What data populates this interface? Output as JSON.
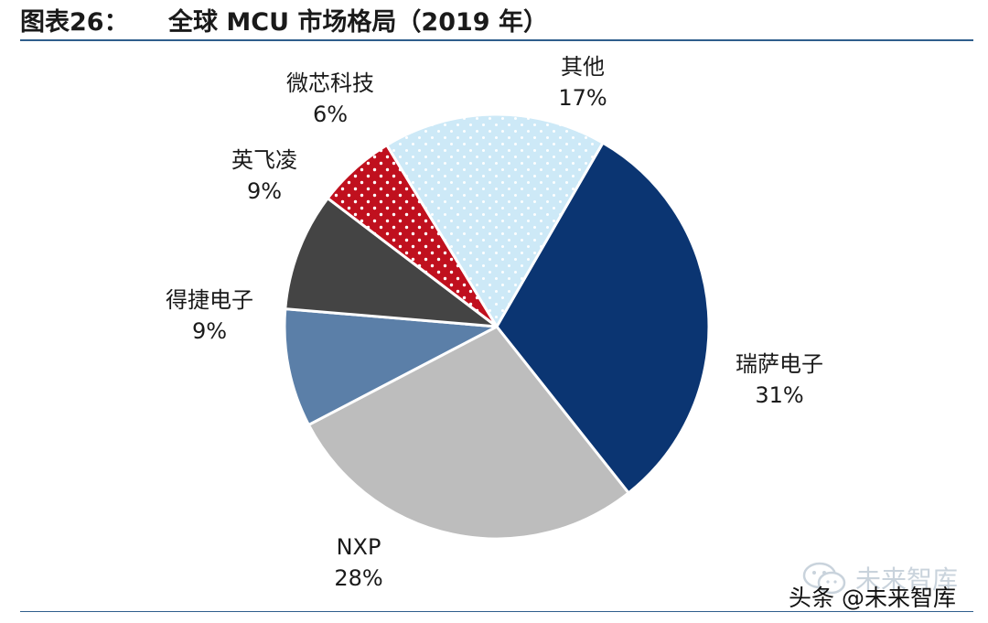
{
  "header": {
    "figure_label": "图表26：",
    "title": "全球 MCU 市场格局（2019 年）"
  },
  "chart_data": {
    "type": "pie",
    "title": "全球 MCU 市场格局（2019 年）",
    "slices": [
      {
        "name": "瑞萨电子",
        "value": 31,
        "value_label": "31%",
        "color": "#0b3572"
      },
      {
        "name": "NXP",
        "value": 28,
        "value_label": "28%",
        "color": "#bdbdbd"
      },
      {
        "name": "得捷电子",
        "value": 9,
        "value_label": "9%",
        "color": "#5b7fa8"
      },
      {
        "name": "英飞凌",
        "value": 9,
        "value_label": "9%",
        "color": "#444444"
      },
      {
        "name": "微芯科技",
        "value": 6,
        "value_label": "6%",
        "color": "#c0101e",
        "pattern": "dots"
      },
      {
        "name": "其他",
        "value": 17,
        "value_label": "17%",
        "color": "#cde9f7",
        "pattern": "dots"
      }
    ],
    "start_angle_deg": 30,
    "direction": "clockwise",
    "legend": "none"
  },
  "watermark": {
    "text": "未来智库"
  },
  "credit": {
    "text": "头条 @未来智库"
  }
}
